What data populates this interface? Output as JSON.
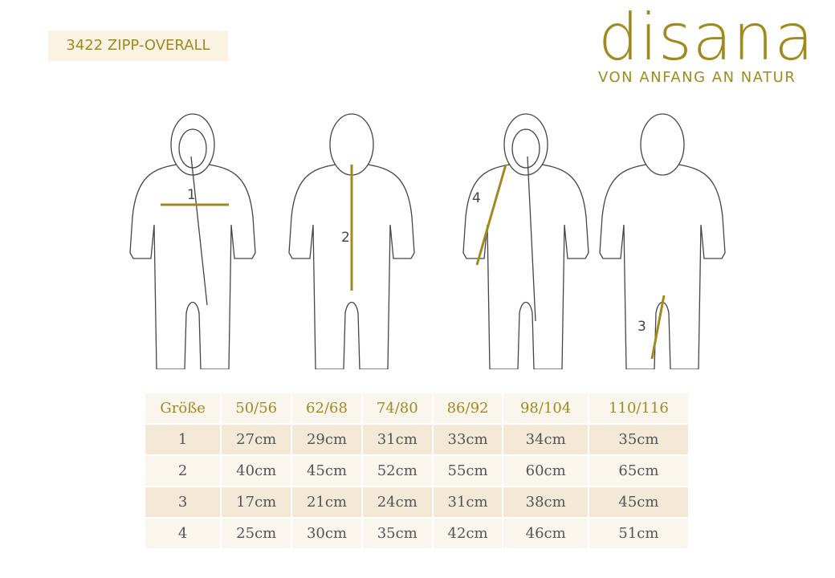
{
  "header": {
    "title": "3422 ZIPP-OVERALL"
  },
  "logo": {
    "name": "disana",
    "tagline": "VON ANFANG AN NATUR"
  },
  "figures": [
    {
      "label": "1"
    },
    {
      "label": "2"
    },
    {
      "label": "4"
    },
    {
      "label": "3"
    }
  ],
  "table": {
    "header": [
      "Größe",
      "50/56",
      "62/68",
      "74/80",
      "86/92",
      "98/104",
      "110/116"
    ],
    "rows": [
      [
        "1",
        "27cm",
        "29cm",
        "31cm",
        "33cm",
        "34cm",
        "35cm"
      ],
      [
        "2",
        "40cm",
        "45cm",
        "52cm",
        "55cm",
        "60cm",
        "65cm"
      ],
      [
        "3",
        "17cm",
        "21cm",
        "24cm",
        "31cm",
        "38cm",
        "45cm"
      ],
      [
        "4",
        "25cm",
        "30cm",
        "35cm",
        "42cm",
        "46cm",
        "51cm"
      ]
    ]
  }
}
